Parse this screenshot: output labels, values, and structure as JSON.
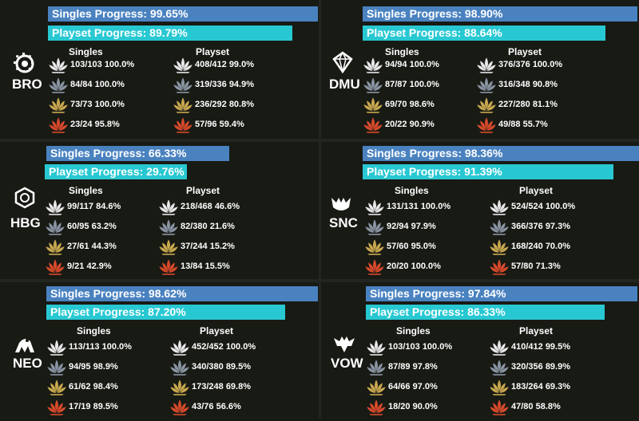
{
  "colors": {
    "common": "#e8e8e8",
    "uncommon": "#8a95a3",
    "rare": "#c9a94e",
    "mythic": "#d84a2a",
    "singles_bar": "#4a82c0",
    "playset_bar": "#28c8d2"
  },
  "labels": {
    "singles": "Singles",
    "playset": "Playset"
  },
  "sets": [
    {
      "code": "BRO",
      "icon": "bro-set-icon",
      "singles_label": "Singles Progress: 99.65%",
      "singles_pct": 99.65,
      "playset_label": "Playset Progress: 89.79%",
      "playset_pct": 89.79,
      "singles": [
        "103/103 100.0%",
        "84/84 100.0%",
        "73/73 100.0%",
        "23/24 95.8%"
      ],
      "playset": [
        "408/412 99.0%",
        "319/336 94.9%",
        "236/292 80.8%",
        "57/96 59.4%"
      ]
    },
    {
      "code": "DMU",
      "icon": "dmu-set-icon",
      "singles_label": "Singles Progress: 98.90%",
      "singles_pct": 98.9,
      "playset_label": "Playset Progress: 88.64%",
      "playset_pct": 88.64,
      "singles": [
        "94/94 100.0%",
        "87/87 100.0%",
        "69/70 98.6%",
        "20/22 90.9%"
      ],
      "playset": [
        "376/376 100.0%",
        "316/348 90.8%",
        "227/280 81.1%",
        "49/88 55.7%"
      ]
    },
    {
      "code": "HBG",
      "icon": "hbg-set-icon",
      "singles_label": "Singles Progress: 66.33%",
      "singles_pct": 66.33,
      "playset_label": "Playset Progress: 29.76%",
      "playset_pct": 29.76,
      "singles": [
        "99/117 84.6%",
        "60/95 63.2%",
        "27/61 44.3%",
        "9/21 42.9%"
      ],
      "playset": [
        "218/468 46.6%",
        "82/380 21.6%",
        "37/244 15.2%",
        "13/84 15.5%"
      ]
    },
    {
      "code": "SNC",
      "icon": "snc-set-icon",
      "singles_label": "Singles Progress: 98.36%",
      "singles_pct": 98.36,
      "playset_label": "Playset Progress: 91.39%",
      "playset_pct": 91.39,
      "singles": [
        "131/131 100.0%",
        "92/94 97.9%",
        "57/60 95.0%",
        "20/20 100.0%"
      ],
      "playset": [
        "524/524 100.0%",
        "366/376 97.3%",
        "168/240 70.0%",
        "57/80 71.3%"
      ]
    },
    {
      "code": "NEO",
      "icon": "neo-set-icon",
      "singles_label": "Singles Progress: 98.62%",
      "singles_pct": 98.62,
      "playset_label": "Playset Progress: 87.20%",
      "playset_pct": 87.2,
      "singles": [
        "113/113 100.0%",
        "94/95 98.9%",
        "61/62 98.4%",
        "17/19 89.5%"
      ],
      "playset": [
        "452/452 100.0%",
        "340/380 89.5%",
        "173/248 69.8%",
        "43/76 56.6%"
      ]
    },
    {
      "code": "VOW",
      "icon": "vow-set-icon",
      "singles_label": "Singles Progress: 97.84%",
      "singles_pct": 97.84,
      "playset_label": "Playset Progress: 86.33%",
      "playset_pct": 86.33,
      "singles": [
        "103/103 100.0%",
        "87/89 97.8%",
        "64/66 97.0%",
        "18/20 90.0%"
      ],
      "playset": [
        "410/412 99.5%",
        "320/356 89.9%",
        "183/264 69.3%",
        "47/80 58.8%"
      ]
    }
  ]
}
